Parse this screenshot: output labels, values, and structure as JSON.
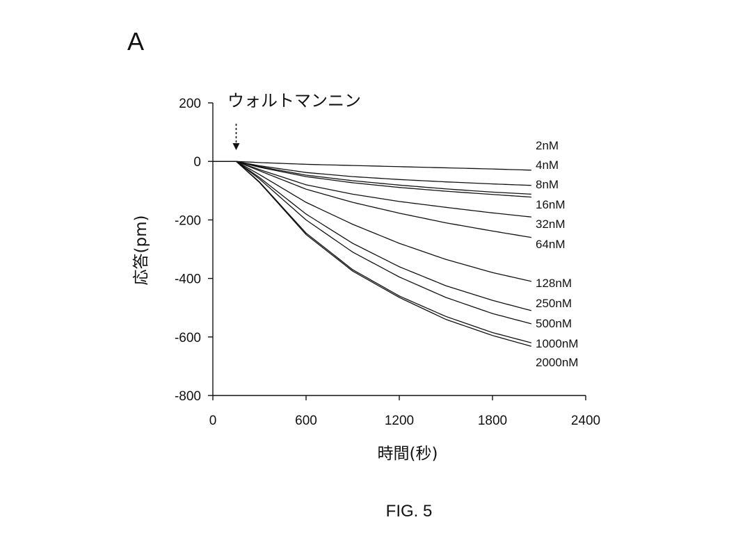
{
  "panel_label": "A",
  "figure_caption": "FIG. 5",
  "annotation": {
    "text": "ウォルトマンニン",
    "x": 150,
    "arrow": "dashed-down-arrow"
  },
  "chart_data": {
    "type": "line",
    "xlabel": "時間(秒)",
    "ylabel": "応答(pm)",
    "xlim": [
      0,
      2400
    ],
    "ylim": [
      -800,
      200
    ],
    "xticks": [
      0,
      600,
      1200,
      1800,
      2400
    ],
    "yticks": [
      200,
      0,
      -200,
      -400,
      -600,
      -800
    ],
    "xtick_labels": [
      "0",
      "600",
      "1200",
      "1800",
      "2400"
    ],
    "ytick_labels": [
      "200",
      "0",
      "-200",
      "-400",
      "-600",
      "-800"
    ],
    "grid": false,
    "legend": "inline-right",
    "series": [
      {
        "name": "2nM",
        "x": [
          0,
          150,
          300,
          600,
          900,
          1200,
          1500,
          1800,
          2050
        ],
        "y": [
          0,
          0,
          -4,
          -10,
          -14,
          -18,
          -22,
          -26,
          -30
        ]
      },
      {
        "name": "4nM",
        "x": [
          0,
          150,
          300,
          600,
          900,
          1200,
          1500,
          1800,
          2050
        ],
        "y": [
          0,
          0,
          -15,
          -38,
          -52,
          -62,
          -70,
          -77,
          -82
        ]
      },
      {
        "name": "8nM",
        "x": [
          0,
          150,
          300,
          600,
          900,
          1200,
          1500,
          1800,
          2050
        ],
        "y": [
          0,
          0,
          -18,
          -47,
          -66,
          -81,
          -94,
          -105,
          -112
        ]
      },
      {
        "name": "16nM",
        "x": [
          0,
          150,
          300,
          600,
          900,
          1200,
          1500,
          1800,
          2050
        ],
        "y": [
          0,
          0,
          -20,
          -52,
          -73,
          -89,
          -102,
          -113,
          -122
        ]
      },
      {
        "name": "32nM",
        "x": [
          0,
          150,
          300,
          600,
          900,
          1200,
          1500,
          1800,
          2050
        ],
        "y": [
          0,
          0,
          -28,
          -80,
          -112,
          -137,
          -157,
          -176,
          -190
        ]
      },
      {
        "name": "64nM",
        "x": [
          0,
          150,
          300,
          600,
          900,
          1200,
          1500,
          1800,
          2050
        ],
        "y": [
          0,
          0,
          -32,
          -95,
          -140,
          -177,
          -210,
          -238,
          -260
        ]
      },
      {
        "name": "128nM",
        "x": [
          0,
          150,
          300,
          600,
          900,
          1200,
          1500,
          1800,
          2050
        ],
        "y": [
          0,
          0,
          -45,
          -140,
          -215,
          -280,
          -335,
          -380,
          -410
        ]
      },
      {
        "name": "250nM",
        "x": [
          0,
          150,
          300,
          600,
          900,
          1200,
          1500,
          1800,
          2050
        ],
        "y": [
          0,
          0,
          -55,
          -180,
          -280,
          -360,
          -425,
          -475,
          -510
        ]
      },
      {
        "name": "500nM",
        "x": [
          0,
          150,
          300,
          600,
          900,
          1200,
          1500,
          1800,
          2050
        ],
        "y": [
          0,
          0,
          -60,
          -200,
          -310,
          -395,
          -465,
          -520,
          -555
        ]
      },
      {
        "name": "1000nM",
        "x": [
          0,
          150,
          300,
          600,
          900,
          1200,
          1500,
          1800,
          2050
        ],
        "y": [
          0,
          0,
          -70,
          -245,
          -370,
          -460,
          -530,
          -585,
          -620
        ]
      },
      {
        "name": "2000nM",
        "x": [
          0,
          150,
          300,
          600,
          900,
          1200,
          1500,
          1800,
          2050
        ],
        "y": [
          0,
          0,
          -72,
          -250,
          -375,
          -465,
          -540,
          -595,
          -632
        ]
      }
    ]
  }
}
